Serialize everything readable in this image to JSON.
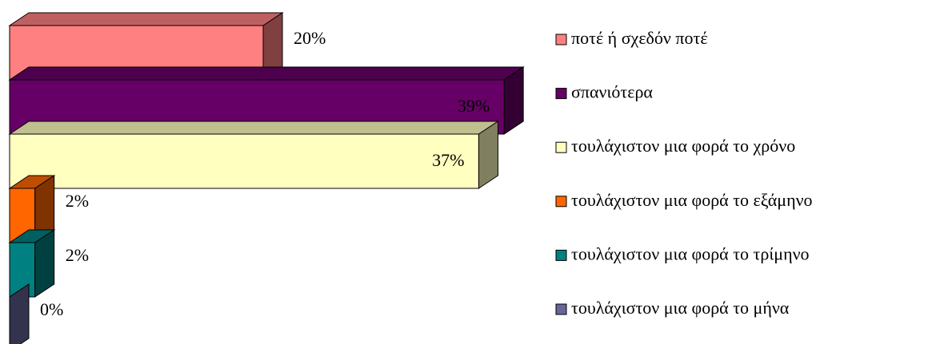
{
  "chart_data": {
    "type": "bar3d_horizontal",
    "categories": [
      "ποτέ ή σχεδόν ποτέ",
      "σπανιότερα",
      "τουλάχιστον μια φορά το χρόνο",
      "τουλάχιστον μια φορά το εξάμηνο",
      "τουλάχιστον μια φορά το τρίμηνο",
      "τουλάχιστον μια φορά το μήνα"
    ],
    "values": [
      20,
      39,
      37,
      2,
      2,
      0
    ],
    "value_labels": [
      "20%",
      "39%",
      "37%",
      "2%",
      "2%",
      "0%"
    ],
    "colors": [
      "#ff8080",
      "#660066",
      "#ffffc0",
      "#ff6600",
      "#008080",
      "#666699"
    ],
    "legend": "right"
  }
}
